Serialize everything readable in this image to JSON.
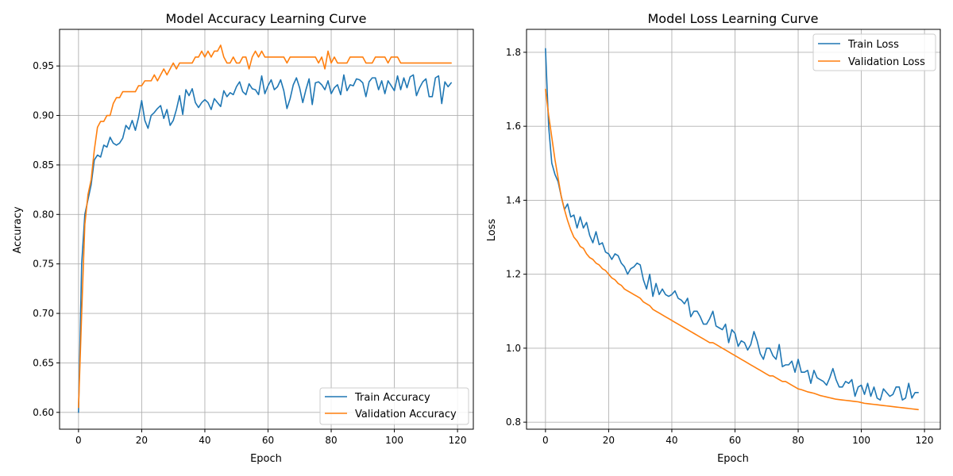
{
  "chart_data": [
    {
      "type": "line",
      "title": "Model Accuracy Learning Curve",
      "xlabel": "Epoch",
      "ylabel": "Accuracy",
      "xlim": [
        -6,
        125
      ],
      "ylim": [
        0.583,
        0.987
      ],
      "x_ticks": [
        0,
        20,
        40,
        60,
        80,
        100,
        120
      ],
      "y_ticks": [
        0.6,
        0.65,
        0.7,
        0.75,
        0.8,
        0.85,
        0.9,
        0.95
      ],
      "y_tick_decimals": 2,
      "grid": true,
      "legend_position": "lower-right",
      "series": [
        {
          "name": "Train Accuracy",
          "color": "#1f77b4",
          "values": [
            0.6,
            0.75,
            0.8,
            0.815,
            0.83,
            0.855,
            0.86,
            0.858,
            0.87,
            0.868,
            0.878,
            0.872,
            0.87,
            0.872,
            0.877,
            0.89,
            0.886,
            0.895,
            0.885,
            0.898,
            0.915,
            0.895,
            0.887,
            0.9,
            0.903,
            0.907,
            0.91,
            0.897,
            0.906,
            0.89,
            0.895,
            0.906,
            0.92,
            0.901,
            0.926,
            0.92,
            0.927,
            0.913,
            0.908,
            0.913,
            0.916,
            0.913,
            0.906,
            0.917,
            0.913,
            0.909,
            0.925,
            0.919,
            0.923,
            0.921,
            0.929,
            0.934,
            0.924,
            0.921,
            0.932,
            0.927,
            0.926,
            0.921,
            0.94,
            0.922,
            0.93,
            0.936,
            0.926,
            0.929,
            0.936,
            0.925,
            0.907,
            0.917,
            0.931,
            0.938,
            0.928,
            0.913,
            0.926,
            0.937,
            0.911,
            0.933,
            0.934,
            0.931,
            0.926,
            0.935,
            0.922,
            0.928,
            0.931,
            0.921,
            0.941,
            0.925,
            0.931,
            0.93,
            0.937,
            0.936,
            0.933,
            0.919,
            0.934,
            0.938,
            0.938,
            0.926,
            0.935,
            0.922,
            0.935,
            0.93,
            0.925,
            0.94,
            0.926,
            0.938,
            0.928,
            0.939,
            0.941,
            0.92,
            0.928,
            0.934,
            0.937,
            0.919,
            0.919,
            0.938,
            0.94,
            0.912,
            0.934,
            0.929,
            0.933
          ]
        },
        {
          "name": "Validation Accuracy",
          "color": "#ff7f0e",
          "values": [
            0.605,
            0.7,
            0.79,
            0.82,
            0.835,
            0.865,
            0.888,
            0.894,
            0.894,
            0.9,
            0.9,
            0.912,
            0.918,
            0.918,
            0.924,
            0.924,
            0.924,
            0.924,
            0.924,
            0.93,
            0.93,
            0.935,
            0.935,
            0.935,
            0.941,
            0.935,
            0.941,
            0.947,
            0.941,
            0.947,
            0.953,
            0.947,
            0.953,
            0.953,
            0.953,
            0.953,
            0.953,
            0.959,
            0.959,
            0.965,
            0.959,
            0.965,
            0.959,
            0.965,
            0.965,
            0.971,
            0.959,
            0.953,
            0.953,
            0.959,
            0.953,
            0.953,
            0.959,
            0.959,
            0.947,
            0.959,
            0.965,
            0.959,
            0.965,
            0.959,
            0.959,
            0.959,
            0.959,
            0.959,
            0.959,
            0.959,
            0.953,
            0.959,
            0.959,
            0.959,
            0.959,
            0.959,
            0.959,
            0.959,
            0.959,
            0.959,
            0.953,
            0.959,
            0.947,
            0.965,
            0.953,
            0.959,
            0.953,
            0.953,
            0.953,
            0.953,
            0.959,
            0.959,
            0.959,
            0.959,
            0.959,
            0.953,
            0.953,
            0.953,
            0.959,
            0.959,
            0.959,
            0.959,
            0.953,
            0.959,
            0.959,
            0.959,
            0.953,
            0.953,
            0.953,
            0.953,
            0.953,
            0.953,
            0.953,
            0.953,
            0.953,
            0.953,
            0.953,
            0.953,
            0.953,
            0.953,
            0.953,
            0.953,
            0.953
          ]
        }
      ]
    },
    {
      "type": "line",
      "title": "Model Loss Learning Curve",
      "xlabel": "Epoch",
      "ylabel": "Loss",
      "xlim": [
        -6,
        125
      ],
      "ylim": [
        0.781,
        1.862
      ],
      "x_ticks": [
        0,
        20,
        40,
        60,
        80,
        100,
        120
      ],
      "y_ticks": [
        0.8,
        1.0,
        1.2,
        1.4,
        1.6,
        1.8
      ],
      "y_tick_decimals": 1,
      "grid": true,
      "legend_position": "upper-right",
      "series": [
        {
          "name": "Train Loss",
          "color": "#1f77b4",
          "values": [
            1.81,
            1.6,
            1.5,
            1.47,
            1.45,
            1.41,
            1.375,
            1.39,
            1.355,
            1.36,
            1.325,
            1.355,
            1.325,
            1.34,
            1.305,
            1.285,
            1.315,
            1.28,
            1.285,
            1.26,
            1.255,
            1.24,
            1.255,
            1.25,
            1.23,
            1.22,
            1.2,
            1.215,
            1.22,
            1.23,
            1.225,
            1.185,
            1.16,
            1.2,
            1.14,
            1.175,
            1.145,
            1.16,
            1.145,
            1.14,
            1.145,
            1.155,
            1.135,
            1.13,
            1.12,
            1.135,
            1.085,
            1.1,
            1.1,
            1.085,
            1.065,
            1.065,
            1.08,
            1.1,
            1.06,
            1.055,
            1.05,
            1.065,
            1.015,
            1.05,
            1.04,
            1.005,
            1.02,
            1.015,
            0.995,
            1.01,
            1.045,
            1.02,
            0.985,
            0.97,
            1.0,
            1.0,
            0.98,
            0.97,
            1.01,
            0.95,
            0.955,
            0.955,
            0.965,
            0.935,
            0.97,
            0.935,
            0.935,
            0.94,
            0.905,
            0.94,
            0.92,
            0.915,
            0.91,
            0.9,
            0.92,
            0.945,
            0.915,
            0.895,
            0.895,
            0.91,
            0.905,
            0.915,
            0.87,
            0.895,
            0.9,
            0.875,
            0.905,
            0.87,
            0.895,
            0.865,
            0.86,
            0.89,
            0.88,
            0.87,
            0.875,
            0.895,
            0.895,
            0.86,
            0.865,
            0.905,
            0.865,
            0.88,
            0.88
          ]
        },
        {
          "name": "Validation Loss",
          "color": "#ff7f0e",
          "values": [
            1.7,
            1.63,
            1.57,
            1.51,
            1.46,
            1.41,
            1.375,
            1.345,
            1.32,
            1.3,
            1.29,
            1.275,
            1.27,
            1.255,
            1.245,
            1.24,
            1.23,
            1.225,
            1.215,
            1.21,
            1.2,
            1.19,
            1.185,
            1.175,
            1.17,
            1.16,
            1.155,
            1.15,
            1.145,
            1.14,
            1.135,
            1.125,
            1.12,
            1.115,
            1.105,
            1.1,
            1.095,
            1.09,
            1.085,
            1.08,
            1.075,
            1.07,
            1.065,
            1.06,
            1.055,
            1.05,
            1.045,
            1.04,
            1.035,
            1.03,
            1.025,
            1.02,
            1.015,
            1.015,
            1.01,
            1.005,
            1.0,
            0.995,
            0.99,
            0.985,
            0.98,
            0.975,
            0.97,
            0.965,
            0.96,
            0.955,
            0.95,
            0.945,
            0.94,
            0.935,
            0.93,
            0.925,
            0.925,
            0.92,
            0.915,
            0.91,
            0.91,
            0.905,
            0.9,
            0.895,
            0.89,
            0.888,
            0.885,
            0.882,
            0.88,
            0.878,
            0.875,
            0.872,
            0.87,
            0.868,
            0.866,
            0.864,
            0.862,
            0.861,
            0.86,
            0.859,
            0.858,
            0.857,
            0.856,
            0.855,
            0.853,
            0.851,
            0.85,
            0.849,
            0.848,
            0.847,
            0.846,
            0.845,
            0.844,
            0.843,
            0.842,
            0.841,
            0.84,
            0.839,
            0.838,
            0.837,
            0.836,
            0.835,
            0.834
          ]
        }
      ]
    }
  ]
}
